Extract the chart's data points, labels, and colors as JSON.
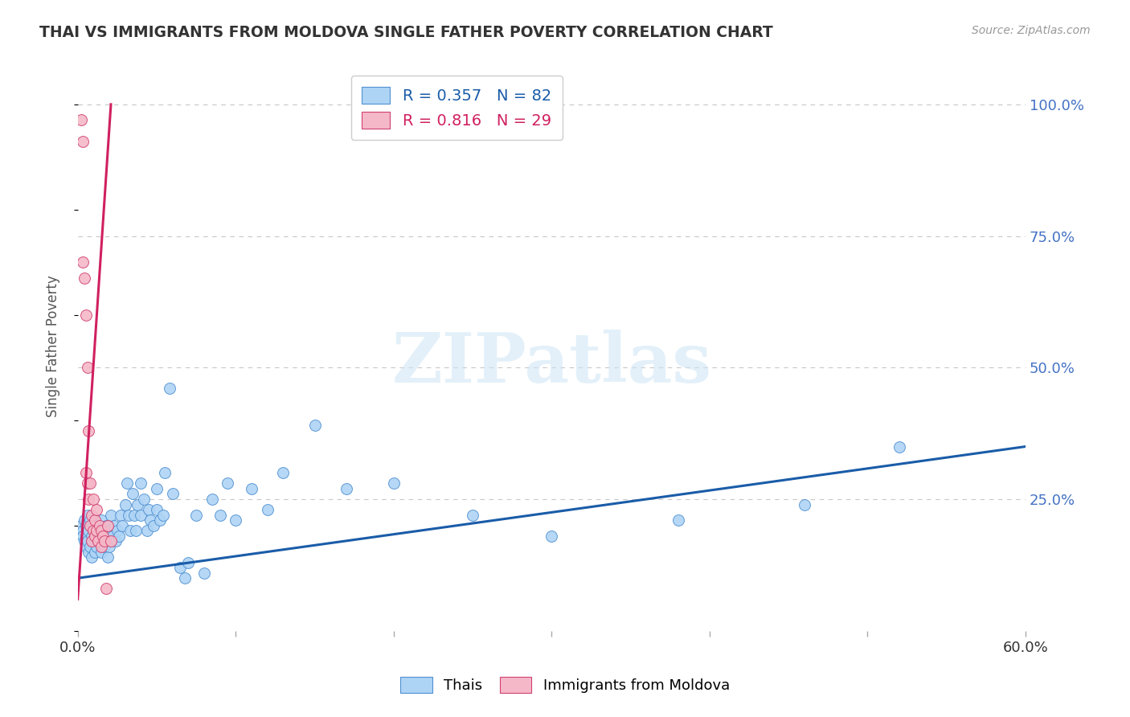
{
  "title": "THAI VS IMMIGRANTS FROM MOLDOVA SINGLE FATHER POVERTY CORRELATION CHART",
  "source": "Source: ZipAtlas.com",
  "ylabel": "Single Father Poverty",
  "ylabel_right_ticks": [
    "100.0%",
    "75.0%",
    "50.0%",
    "25.0%"
  ],
  "ylabel_right_vals": [
    1.0,
    0.75,
    0.5,
    0.25
  ],
  "xlim": [
    0.0,
    0.6
  ],
  "ylim": [
    0.0,
    1.08
  ],
  "legend_r_thai": "R = 0.357",
  "legend_n_thai": "N = 82",
  "legend_r_mold": "R = 0.816",
  "legend_n_mold": "N = 29",
  "thai_color": "#aed4f5",
  "thai_edge_color": "#5090d0",
  "mold_color": "#f5b8c8",
  "mold_edge_color": "#d04070",
  "thai_line_color": "#1a5ca8",
  "mold_line_color": "#d02060",
  "thai_scatter_x": [
    0.002,
    0.003,
    0.003,
    0.004,
    0.004,
    0.005,
    0.005,
    0.005,
    0.006,
    0.006,
    0.007,
    0.007,
    0.008,
    0.008,
    0.009,
    0.009,
    0.01,
    0.01,
    0.011,
    0.011,
    0.012,
    0.012,
    0.013,
    0.014,
    0.015,
    0.015,
    0.016,
    0.017,
    0.018,
    0.019,
    0.02,
    0.02,
    0.021,
    0.022,
    0.023,
    0.024,
    0.025,
    0.026,
    0.027,
    0.028,
    0.03,
    0.031,
    0.032,
    0.033,
    0.035,
    0.036,
    0.037,
    0.038,
    0.04,
    0.04,
    0.042,
    0.044,
    0.045,
    0.046,
    0.048,
    0.05,
    0.05,
    0.052,
    0.054,
    0.055,
    0.058,
    0.06,
    0.065,
    0.068,
    0.07,
    0.075,
    0.08,
    0.085,
    0.09,
    0.095,
    0.1,
    0.11,
    0.12,
    0.13,
    0.15,
    0.17,
    0.2,
    0.25,
    0.3,
    0.38,
    0.46,
    0.52
  ],
  "thai_scatter_y": [
    0.2,
    0.19,
    0.18,
    0.21,
    0.17,
    0.2,
    0.18,
    0.16,
    0.22,
    0.17,
    0.19,
    0.15,
    0.21,
    0.16,
    0.18,
    0.14,
    0.2,
    0.17,
    0.19,
    0.15,
    0.18,
    0.16,
    0.17,
    0.19,
    0.21,
    0.15,
    0.18,
    0.16,
    0.2,
    0.14,
    0.19,
    0.16,
    0.22,
    0.18,
    0.2,
    0.17,
    0.19,
    0.18,
    0.22,
    0.2,
    0.24,
    0.28,
    0.22,
    0.19,
    0.26,
    0.22,
    0.19,
    0.24,
    0.28,
    0.22,
    0.25,
    0.19,
    0.23,
    0.21,
    0.2,
    0.27,
    0.23,
    0.21,
    0.22,
    0.3,
    0.46,
    0.26,
    0.12,
    0.1,
    0.13,
    0.22,
    0.11,
    0.25,
    0.22,
    0.28,
    0.21,
    0.27,
    0.23,
    0.3,
    0.39,
    0.27,
    0.28,
    0.22,
    0.18,
    0.21,
    0.24,
    0.35
  ],
  "mold_scatter_x": [
    0.002,
    0.003,
    0.003,
    0.004,
    0.005,
    0.005,
    0.006,
    0.006,
    0.007,
    0.007,
    0.008,
    0.008,
    0.009,
    0.009,
    0.01,
    0.01,
    0.011,
    0.011,
    0.012,
    0.012,
    0.013,
    0.014,
    0.015,
    0.015,
    0.016,
    0.017,
    0.018,
    0.019,
    0.021
  ],
  "mold_scatter_y": [
    0.97,
    0.93,
    0.7,
    0.67,
    0.6,
    0.3,
    0.5,
    0.28,
    0.38,
    0.25,
    0.28,
    0.2,
    0.22,
    0.17,
    0.25,
    0.19,
    0.21,
    0.18,
    0.23,
    0.19,
    0.17,
    0.2,
    0.19,
    0.16,
    0.18,
    0.17,
    0.08,
    0.2,
    0.17
  ],
  "thai_trend_x0": 0.0,
  "thai_trend_x1": 0.6,
  "thai_trend_y0": 0.1,
  "thai_trend_y1": 0.35,
  "mold_trend_x0": 0.0,
  "mold_trend_x1": 0.021,
  "mold_trend_y0": 0.06,
  "mold_trend_y1": 1.0,
  "watermark": "ZIPatlas",
  "bg_color": "#ffffff",
  "grid_color": "#c8c8c8"
}
